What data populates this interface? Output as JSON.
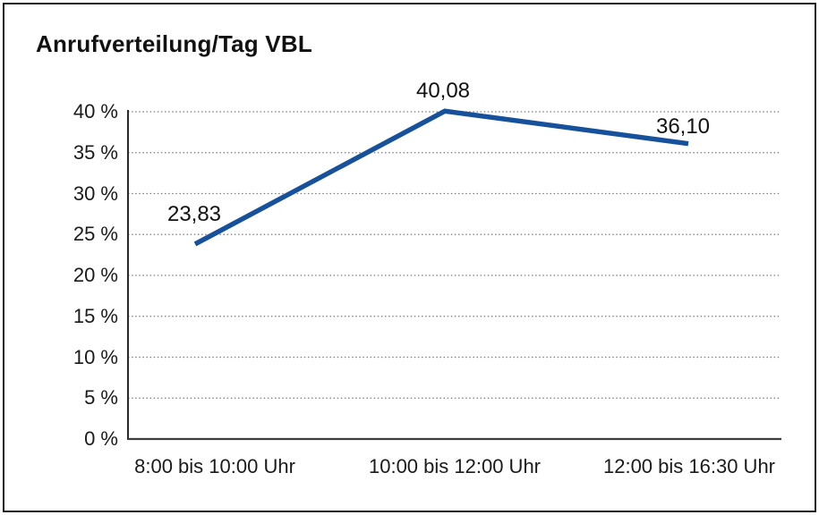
{
  "chart_data": {
    "type": "line",
    "title": "Anrufverteilung/Tag VBL",
    "categories": [
      "8:00 bis 10:00 Uhr",
      "10:00 bis 12:00 Uhr",
      "12:00 bis 16:30 Uhr"
    ],
    "series": [
      {
        "name": "Anrufverteilung",
        "values": [
          23.83,
          40.08,
          36.1
        ]
      }
    ],
    "values": [
      23.83,
      40.08,
      36.1
    ],
    "value_labels": [
      "23,83",
      "40,08",
      "36,10"
    ],
    "xlabel": "",
    "ylabel": "",
    "ylim": [
      0,
      40
    ],
    "ytick_step": 5,
    "ytick_labels": [
      "0 %",
      "5 %",
      "10 %",
      "15 %",
      "20 %",
      "25 %",
      "30 %",
      "35 %",
      "40 %"
    ],
    "grid": "horizontal dotted gridlines at each 5% tick, solid x and y axis lines",
    "legend": "none",
    "line_color": "#17519C",
    "axis_color": "#3d3d3d",
    "grid_color": "#7a7a7a"
  }
}
